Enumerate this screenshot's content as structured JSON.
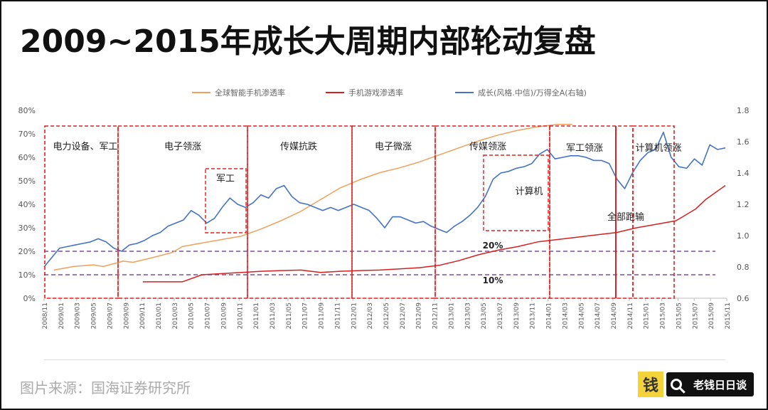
{
  "title": "2009~2015年成长大周期内部轮动复盘",
  "source": "图片来源：国海证券研究所",
  "brand": {
    "logo_char": "钱",
    "name": "老钱日日谈"
  },
  "chart_data": {
    "type": "line",
    "legend_position": "top",
    "x_labels": [
      "2008/11",
      "2009/01",
      "2009/03",
      "2009/05",
      "2009/07",
      "2009/09",
      "2009/11",
      "2010/01",
      "2010/03",
      "2010/05",
      "2010/07",
      "2010/09",
      "2010/11",
      "2011/01",
      "2011/03",
      "2011/05",
      "2011/07",
      "2011/09",
      "2011/11",
      "2012/01",
      "2012/03",
      "2012/05",
      "2012/07",
      "2012/09",
      "2012/11",
      "2013/01",
      "2013/03",
      "2013/05",
      "2013/07",
      "2013/09",
      "2013/11",
      "2014/01",
      "2014/03",
      "2014/05",
      "2014/07",
      "2014/09",
      "2014/11",
      "2015/01",
      "2015/03",
      "2015/05",
      "2015/07",
      "2015/09",
      "2015/11"
    ],
    "y_left": {
      "min": 0,
      "max": 80,
      "ticks": [
        "0%",
        "10%",
        "20%",
        "30%",
        "40%",
        "50%",
        "60%",
        "70%",
        "80%"
      ]
    },
    "y_right": {
      "min": 0.6,
      "max": 1.8,
      "ticks": [
        "0.6",
        "0.8",
        "1.0",
        "1.2",
        "1.4",
        "1.6",
        "1.8"
      ]
    },
    "series": [
      {
        "name": "全球智能手机渗透率",
        "color": "#f0a05a",
        "axis": "left",
        "points": [
          [
            1,
            12
          ],
          [
            3,
            13.5
          ],
          [
            5,
            14.2
          ],
          [
            6,
            13.5
          ],
          [
            8,
            15.8
          ],
          [
            9,
            15.3
          ],
          [
            11,
            17.3
          ],
          [
            13,
            19.5
          ],
          [
            14,
            22
          ],
          [
            16,
            23.5
          ],
          [
            18,
            25
          ],
          [
            20,
            26.5
          ],
          [
            22,
            29.5
          ],
          [
            24,
            33
          ],
          [
            26,
            37
          ],
          [
            28,
            42
          ],
          [
            30,
            47
          ],
          [
            32,
            50.5
          ],
          [
            34,
            53.5
          ],
          [
            36,
            55.5
          ],
          [
            38,
            58
          ],
          [
            40,
            61
          ],
          [
            42,
            64
          ],
          [
            44,
            67
          ],
          [
            46,
            69.5
          ],
          [
            48,
            71.5
          ],
          [
            50,
            73
          ],
          [
            52,
            74
          ],
          [
            53.5,
            74
          ]
        ]
      },
      {
        "name": "手机游戏渗透率",
        "color": "#d42020",
        "axis": "left",
        "points": [
          [
            10,
            7
          ],
          [
            14,
            7
          ],
          [
            16,
            10
          ],
          [
            18,
            10.5
          ],
          [
            20,
            11
          ],
          [
            22,
            11.5
          ],
          [
            24,
            11.8
          ],
          [
            26,
            12
          ],
          [
            28,
            11
          ],
          [
            30,
            11.5
          ],
          [
            32,
            11.8
          ],
          [
            34,
            12
          ],
          [
            36,
            12.5
          ],
          [
            38,
            13
          ],
          [
            40,
            14
          ],
          [
            42,
            16
          ],
          [
            44,
            18.5
          ],
          [
            46,
            20.5
          ],
          [
            48,
            22
          ],
          [
            50,
            24
          ],
          [
            52,
            25
          ],
          [
            54,
            26
          ],
          [
            56,
            27
          ],
          [
            58,
            28
          ],
          [
            60,
            30
          ],
          [
            62,
            31.5
          ],
          [
            64,
            33
          ],
          [
            66,
            38
          ],
          [
            67,
            42
          ],
          [
            68,
            45
          ],
          [
            69,
            48
          ]
        ]
      },
      {
        "name": "成长(风格.中信)/万得全A(右轴)",
        "color": "#4472c4",
        "axis": "right",
        "points": [
          [
            0,
            0.8
          ],
          [
            1,
            0.86
          ],
          [
            2,
            0.92
          ],
          [
            3,
            0.93
          ],
          [
            4,
            0.94
          ],
          [
            5,
            0.95
          ],
          [
            6,
            0.96
          ],
          [
            7,
            0.98
          ],
          [
            8,
            0.96
          ],
          [
            9,
            0.92
          ],
          [
            10,
            0.9
          ],
          [
            11,
            0.94
          ],
          [
            12,
            0.95
          ],
          [
            13,
            0.97
          ],
          [
            14,
            1.0
          ],
          [
            15,
            1.02
          ],
          [
            16,
            1.06
          ],
          [
            17,
            1.08
          ],
          [
            18,
            1.1
          ],
          [
            19,
            1.16
          ],
          [
            20,
            1.13
          ],
          [
            21,
            1.08
          ],
          [
            22,
            1.11
          ],
          [
            23,
            1.18
          ],
          [
            24,
            1.24
          ],
          [
            25,
            1.2
          ],
          [
            26,
            1.18
          ],
          [
            27,
            1.21
          ],
          [
            28,
            1.26
          ],
          [
            29,
            1.24
          ],
          [
            30,
            1.3
          ],
          [
            31,
            1.32
          ],
          [
            32,
            1.25
          ],
          [
            33,
            1.21
          ],
          [
            34,
            1.2
          ],
          [
            35,
            1.18
          ],
          [
            36,
            1.16
          ],
          [
            37,
            1.18
          ],
          [
            38,
            1.16
          ],
          [
            39,
            1.18
          ],
          [
            40,
            1.2
          ],
          [
            41,
            1.18
          ],
          [
            42,
            1.16
          ],
          [
            43,
            1.11
          ],
          [
            44,
            1.05
          ],
          [
            45,
            1.12
          ],
          [
            46,
            1.12
          ],
          [
            47,
            1.1
          ],
          [
            48,
            1.08
          ],
          [
            49,
            1.09
          ],
          [
            50,
            1.06
          ],
          [
            51,
            1.04
          ],
          [
            52,
            1.02
          ],
          [
            53,
            1.06
          ],
          [
            54,
            1.09
          ],
          [
            55,
            1.13
          ],
          [
            56,
            1.18
          ],
          [
            57,
            1.25
          ],
          [
            58,
            1.36
          ],
          [
            59,
            1.4
          ],
          [
            60,
            1.41
          ],
          [
            61,
            1.43
          ],
          [
            62,
            1.44
          ],
          [
            63,
            1.46
          ],
          [
            64,
            1.52
          ],
          [
            65,
            1.55
          ],
          [
            66,
            1.49
          ],
          [
            67,
            1.5
          ],
          [
            68,
            1.51
          ],
          [
            69,
            1.51
          ],
          [
            70,
            1.5
          ],
          [
            71,
            1.48
          ],
          [
            72,
            1.48
          ],
          [
            73,
            1.46
          ],
          [
            74,
            1.36
          ],
          [
            75,
            1.3
          ],
          [
            76,
            1.4
          ],
          [
            77,
            1.48
          ],
          [
            78,
            1.53
          ],
          [
            79,
            1.55
          ],
          [
            80,
            1.66
          ],
          [
            81,
            1.5
          ],
          [
            82,
            1.44
          ],
          [
            83,
            1.43
          ],
          [
            84,
            1.49
          ],
          [
            85,
            1.45
          ],
          [
            86,
            1.58
          ],
          [
            87,
            1.55
          ],
          [
            88,
            1.56
          ]
        ]
      }
    ],
    "reference_lines": [
      {
        "label": "20%",
        "value": 20,
        "color": "#7b4fa0"
      },
      {
        "label": "10%",
        "value": 10,
        "color": "#7b4fa0"
      }
    ],
    "period_boxes": [
      {
        "label": "电力设备、军工"
      },
      {
        "label": "电子领涨"
      },
      {
        "label": "传媒抗跌"
      },
      {
        "label": "电子微涨"
      },
      {
        "label": "传媒领涨"
      },
      {
        "label": "军工领涨"
      },
      {
        "label": "计算机领涨"
      }
    ],
    "sub_boxes": [
      {
        "label": "军工"
      },
      {
        "label": "计算机"
      }
    ],
    "vertical_marker": {
      "label": "全部跑输"
    }
  }
}
